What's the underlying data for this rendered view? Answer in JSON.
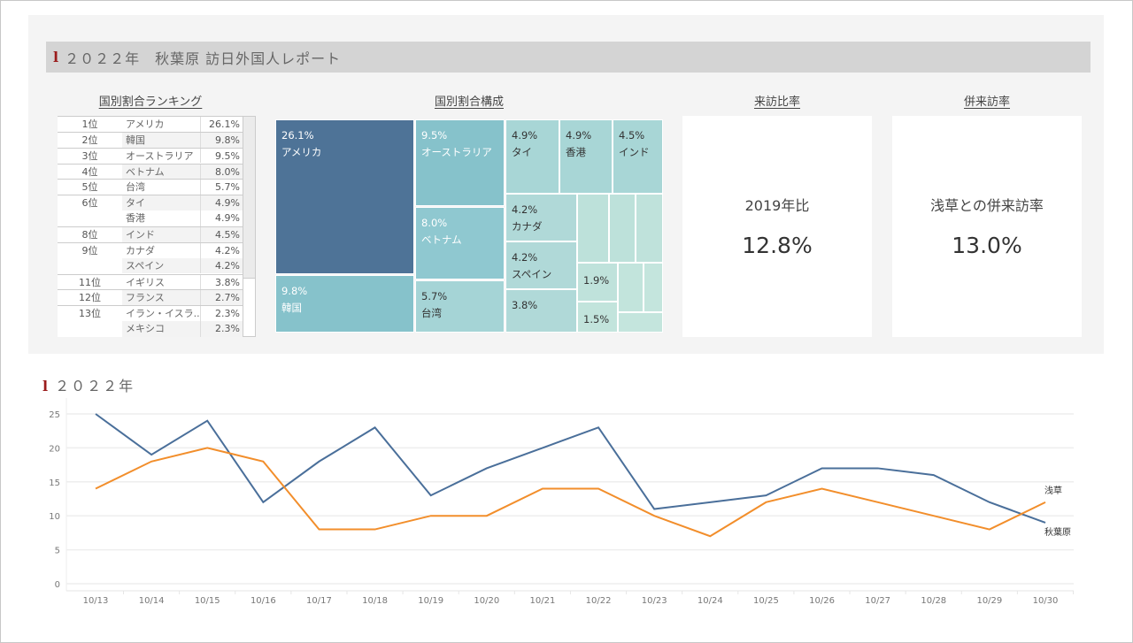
{
  "header": {
    "title_mark": "l",
    "title": "２０２２年　秋葉原 訪日外国人レポート"
  },
  "ranking": {
    "title": "国別割合ランキング",
    "rows": [
      {
        "rank": "1位",
        "country": "アメリカ",
        "pct": "26.1%"
      },
      {
        "rank": "2位",
        "country": "韓国",
        "pct": "9.8%"
      },
      {
        "rank": "3位",
        "country": "オーストラリア",
        "pct": "9.5%"
      },
      {
        "rank": "4位",
        "country": "ベトナム",
        "pct": "8.0%"
      },
      {
        "rank": "5位",
        "country": "台湾",
        "pct": "5.7%"
      },
      {
        "rank": "6位",
        "country": "タイ",
        "pct": "4.9%"
      },
      {
        "rank": "",
        "country": "香港",
        "pct": "4.9%"
      },
      {
        "rank": "8位",
        "country": "インド",
        "pct": "4.5%"
      },
      {
        "rank": "9位",
        "country": "カナダ",
        "pct": "4.2%"
      },
      {
        "rank": "",
        "country": "スペイン",
        "pct": "4.2%"
      },
      {
        "rank": "11位",
        "country": "イギリス",
        "pct": "3.8%"
      },
      {
        "rank": "12位",
        "country": "フランス",
        "pct": "2.7%"
      },
      {
        "rank": "13位",
        "country": "イラン・イスラ..",
        "pct": "2.3%"
      },
      {
        "rank": "",
        "country": "メキシコ",
        "pct": "2.3%"
      }
    ]
  },
  "treemap": {
    "title": "国別割合構成",
    "cells": [
      {
        "pct": "26.1%",
        "label": "アメリカ",
        "color": "#4e7397"
      },
      {
        "pct": "9.8%",
        "label": "韓国",
        "color": "#86c2cb"
      },
      {
        "pct": "9.5%",
        "label": "オーストラリア",
        "color": "#86c2cb"
      },
      {
        "pct": "8.0%",
        "label": "ベトナム",
        "color": "#8fc8d0"
      },
      {
        "pct": "5.7%",
        "label": "台湾",
        "color": "#a5d4d6"
      },
      {
        "pct": "4.9%",
        "label": "タイ",
        "color": "#a8d6d6"
      },
      {
        "pct": "4.9%",
        "label": "香港",
        "color": "#a8d6d6"
      },
      {
        "pct": "4.5%",
        "label": "インド",
        "color": "#a8d6d6"
      },
      {
        "pct": "4.2%",
        "label": "カナダ",
        "color": "#b0d9d8"
      },
      {
        "pct": "4.2%",
        "label": "スペイン",
        "color": "#b0d9d8"
      },
      {
        "pct": "3.8%",
        "label": "",
        "color": "#b0d9d8"
      },
      {
        "pct": "",
        "label": "",
        "color": "#bde1da"
      },
      {
        "pct": "",
        "label": "",
        "color": "#bde1da"
      },
      {
        "pct": "",
        "label": "",
        "color": "#bfe2db"
      },
      {
        "pct": "1.9%",
        "label": "",
        "color": "#bfe2db"
      },
      {
        "pct": "1.5%",
        "label": "",
        "color": "#c2e4dc"
      },
      {
        "pct": "",
        "label": "",
        "color": "#c2e4dc"
      },
      {
        "pct": "",
        "label": "",
        "color": "#c4e5dd"
      },
      {
        "pct": "",
        "label": "",
        "color": "#c4e5dd"
      }
    ]
  },
  "kpi1": {
    "title": "来訪比率",
    "label": "2019年比",
    "value": "12.8%"
  },
  "kpi2": {
    "title": "併来訪率",
    "label": "浅草との併来訪率",
    "value": "13.0%"
  },
  "line_section": {
    "title_mark": "l",
    "title": "２０２２年"
  },
  "chart_data": {
    "type": "line",
    "x": [
      "10/13",
      "10/14",
      "10/15",
      "10/16",
      "10/17",
      "10/18",
      "10/19",
      "10/20",
      "10/21",
      "10/22",
      "10/23",
      "10/24",
      "10/25",
      "10/26",
      "10/27",
      "10/28",
      "10/29",
      "10/30"
    ],
    "series": [
      {
        "name": "秋葉原",
        "color": "#4a6f9a",
        "values": [
          25,
          19,
          24,
          12,
          18,
          23,
          13,
          17,
          20,
          23,
          11,
          12,
          13,
          17,
          17,
          16,
          12,
          9
        ]
      },
      {
        "name": "浅草",
        "color": "#f28e2b",
        "values": [
          14,
          18,
          20,
          18,
          8,
          8,
          10,
          10,
          14,
          14,
          10,
          7,
          12,
          14,
          12,
          10,
          8,
          12
        ]
      }
    ],
    "yticks": [
      0,
      5,
      10,
      15,
      20,
      25
    ],
    "ylim": [
      0,
      27
    ],
    "grid": true,
    "legend": "end-of-line labels"
  }
}
